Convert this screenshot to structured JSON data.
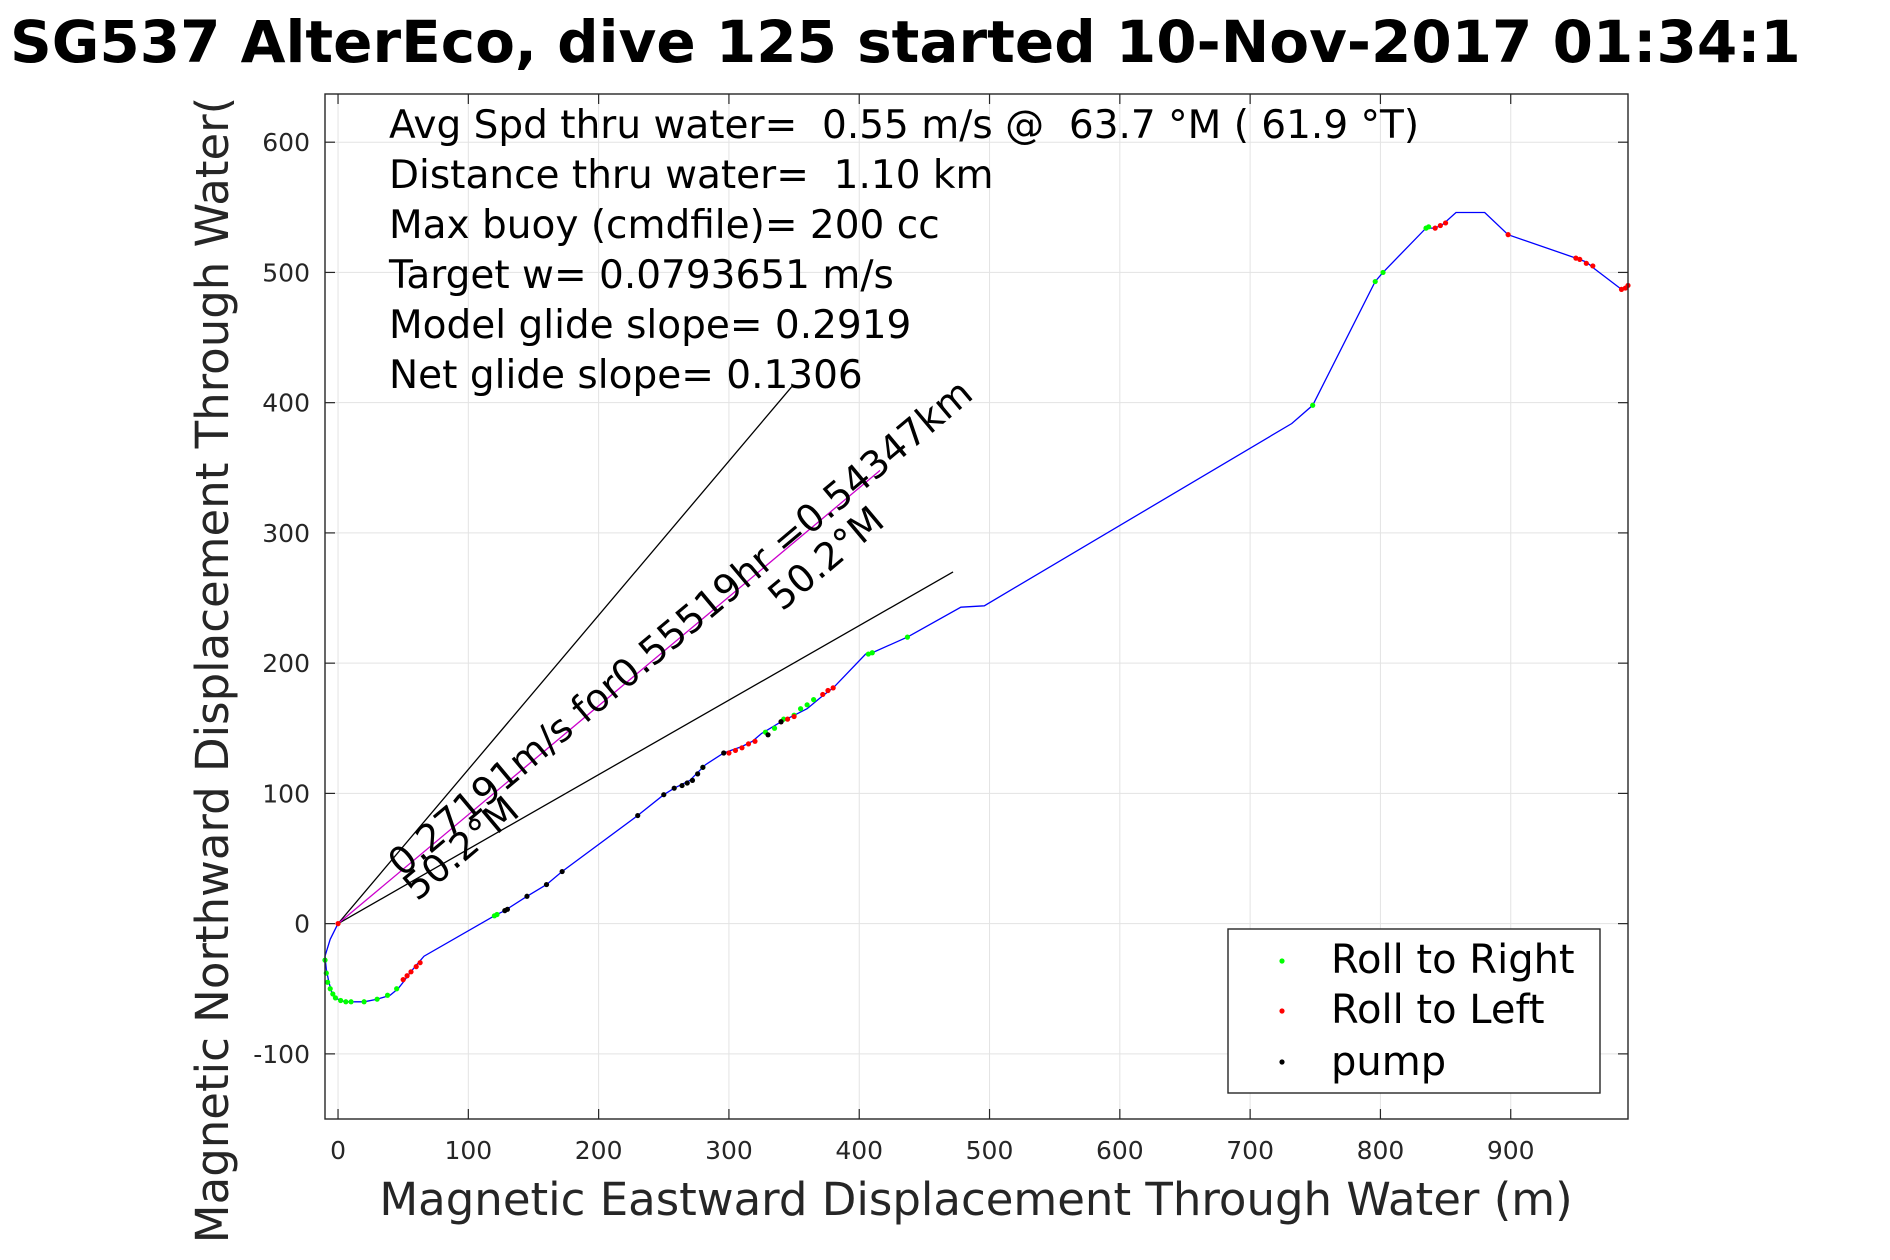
{
  "chart_data": {
    "type": "scatter",
    "title": "SG537 AlterEco, dive 125 started 10-Nov-2017 01:34:1",
    "xlabel": "Magnetic Eastward Displacement Through Water (m)",
    "ylabel": "Magnetic Northward Displacement Through Water(",
    "xlim": [
      -10,
      990
    ],
    "ylim": [
      -150,
      637
    ],
    "xticks": [
      0,
      100,
      200,
      300,
      400,
      500,
      600,
      700,
      800,
      900
    ],
    "yticks": [
      -100,
      0,
      100,
      200,
      300,
      400,
      500,
      600
    ],
    "xticklabels": [
      "0",
      "100",
      "200",
      "300",
      "400",
      "500",
      "600",
      "700",
      "800",
      "900"
    ],
    "yticklabels": [
      "-100",
      "0",
      "100",
      "200",
      "300",
      "400",
      "500",
      "600"
    ],
    "grid": true,
    "legend_position": "bottom-right",
    "annotations": [
      "Avg Spd thru water=  0.55 m/s @  63.7 °M ( 61.9 °T)",
      "Distance thru water=  1.10 km",
      "Max buoy (cmdfile)= 200 cc",
      "Target w= 0.0793651 m/s",
      "Model glide slope= 0.2919",
      "Net glide slope= 0.1306"
    ],
    "current_label": "0.27191m/s for0.55519hr =0.54347km",
    "heading_labels": [
      "50.2°M",
      "50.2°M"
    ],
    "track": {
      "color": "#0000ff",
      "x": [
        0,
        -6,
        -10,
        -9,
        -7,
        -5,
        -2,
        2,
        6,
        10,
        20,
        30,
        40,
        46,
        50,
        55,
        60,
        66,
        120,
        128,
        145,
        160,
        172,
        230,
        250,
        258,
        270,
        282,
        296,
        310,
        318,
        325,
        340,
        350,
        360,
        372,
        380,
        405,
        410,
        437,
        478,
        496,
        732,
        748,
        796,
        802,
        835,
        842,
        848,
        858,
        880,
        898,
        950,
        958,
        964,
        985,
        990
      ],
      "y": [
        0,
        -12,
        -25,
        -35,
        -45,
        -52,
        -57,
        -59,
        -60,
        -60,
        -60,
        -58,
        -55,
        -50,
        -45,
        -38,
        -32,
        -25,
        6,
        10,
        21,
        30,
        40,
        83,
        99,
        104,
        110,
        122,
        131,
        136,
        140,
        146,
        155,
        160,
        165,
        175,
        181,
        207,
        208,
        220,
        243,
        244,
        384,
        398,
        493,
        500,
        534,
        534,
        537,
        546,
        546,
        529,
        511,
        508,
        503,
        487,
        490
      ]
    },
    "current_vector": {
      "color": "#cc00cc",
      "x": [
        0,
        416
      ],
      "y": [
        0,
        348
      ]
    },
    "heading_lines": [
      {
        "color": "#000000",
        "x": [
          0,
          348
        ],
        "y": [
          0,
          412
        ]
      },
      {
        "color": "#000000",
        "x": [
          0,
          472
        ],
        "y": [
          0,
          270
        ]
      }
    ],
    "series": [
      {
        "name": "Roll to Right",
        "color": "#00ff00",
        "x": [
          -10,
          -9,
          -8,
          -6,
          -4,
          -2,
          2,
          6,
          10,
          20,
          30,
          38,
          45,
          120,
          122,
          280,
          328,
          335,
          342,
          350,
          355,
          360,
          365,
          407,
          410,
          437,
          748,
          796,
          802,
          835,
          837
        ],
        "y": [
          -28,
          -38,
          -45,
          -50,
          -54,
          -57,
          -59,
          -60,
          -60,
          -60,
          -58,
          -55,
          -50,
          6,
          7,
          120,
          147,
          150,
          157,
          160,
          165,
          168,
          172,
          207,
          208,
          220,
          398,
          493,
          500,
          534,
          535
        ]
      },
      {
        "name": "Roll to Left",
        "color": "#ff0000",
        "x": [
          0,
          50,
          53,
          56,
          60,
          63,
          300,
          305,
          310,
          315,
          320,
          340,
          345,
          350,
          372,
          376,
          380,
          842,
          846,
          850,
          898,
          950,
          953,
          958,
          963,
          985,
          988,
          990
        ],
        "y": [
          0,
          -43,
          -40,
          -37,
          -33,
          -30,
          131,
          133,
          135,
          138,
          140,
          155,
          157,
          159,
          176,
          179,
          181,
          534,
          536,
          538,
          529,
          511,
          510,
          507,
          505,
          487,
          488,
          490
        ]
      },
      {
        "name": "pump",
        "color": "#000000",
        "x": [
          128,
          130,
          145,
          160,
          172,
          230,
          250,
          258,
          264,
          268,
          272,
          276,
          280,
          296,
          330,
          340
        ],
        "y": [
          10,
          11,
          21,
          30,
          40,
          83,
          99,
          104,
          106,
          108,
          110,
          115,
          120,
          131,
          145,
          155
        ]
      }
    ]
  }
}
